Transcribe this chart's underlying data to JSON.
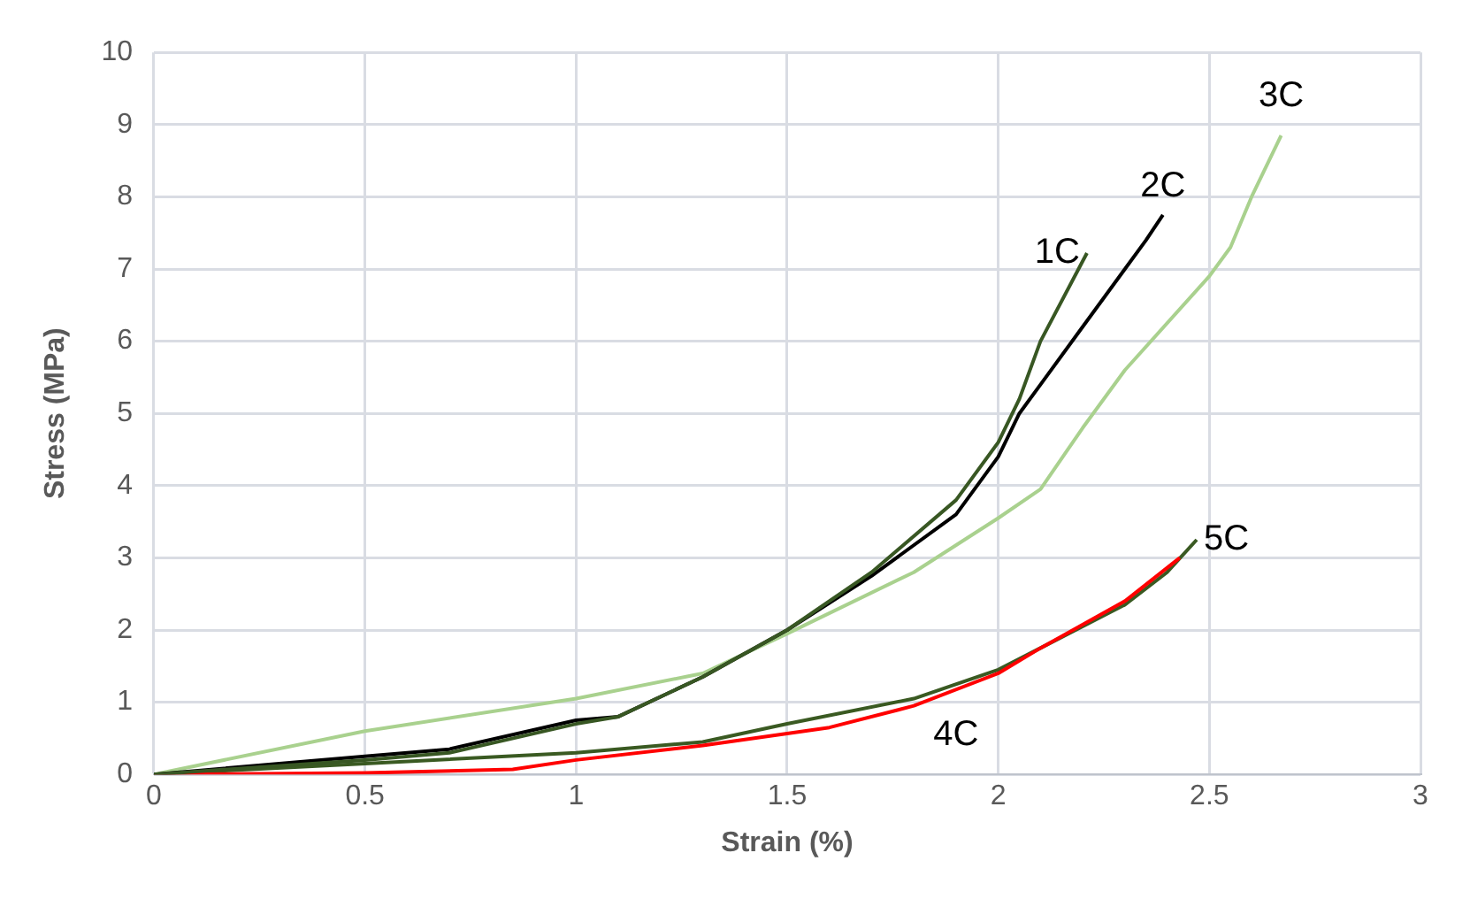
{
  "chart_data": {
    "type": "line",
    "xlabel": "Strain (%)",
    "ylabel": "Stress (MPa)",
    "xlim": [
      0,
      3
    ],
    "xticks": [
      0,
      0.5,
      1,
      1.5,
      2,
      2.5,
      3
    ],
    "ylim": [
      0,
      10
    ],
    "yticks": [
      0,
      1,
      2,
      3,
      4,
      5,
      6,
      7,
      8,
      9,
      10
    ],
    "grid": true,
    "legend": false,
    "marker": "none",
    "line_style": "solid",
    "series": [
      {
        "name": "1C",
        "color": "#385723",
        "x": [
          0,
          0.5,
          0.7,
          1,
          1.1,
          1.3,
          1.5,
          1.7,
          1.9,
          2,
          2.05,
          2.1,
          2.21
        ],
        "values": [
          0,
          0.2,
          0.3,
          0.7,
          0.8,
          1.35,
          2,
          2.8,
          3.8,
          4.6,
          5.2,
          6,
          7.22
        ]
      },
      {
        "name": "2C",
        "color": "#000000",
        "x": [
          0,
          0.5,
          0.7,
          1,
          1.1,
          1.3,
          1.5,
          1.7,
          1.9,
          2,
          2.05,
          2.1,
          2.2,
          2.3,
          2.35,
          2.39
        ],
        "values": [
          0,
          0.25,
          0.35,
          0.75,
          0.8,
          1.35,
          2,
          2.75,
          3.6,
          4.4,
          5,
          5.4,
          6.2,
          7,
          7.4,
          7.75
        ]
      },
      {
        "name": "3C",
        "color": "#a9d18e",
        "x": [
          0,
          0.5,
          1,
          1.3,
          1.5,
          1.8,
          2,
          2.1,
          2.2,
          2.3,
          2.5,
          2.55,
          2.6,
          2.67
        ],
        "values": [
          0,
          0.6,
          1.05,
          1.4,
          1.95,
          2.8,
          3.55,
          3.95,
          4.8,
          5.6,
          6.9,
          7.3,
          8,
          8.85
        ]
      },
      {
        "name": "4C",
        "color": "#ff0000",
        "x": [
          0,
          0.5,
          0.85,
          1,
          1.3,
          1.6,
          1.8,
          2,
          2.1,
          2.3,
          2.43
        ],
        "values": [
          0,
          0.02,
          0.07,
          0.2,
          0.4,
          0.65,
          0.95,
          1.4,
          1.75,
          2.4,
          3
        ]
      },
      {
        "name": "5C",
        "color": "#3a5a22",
        "x": [
          0,
          0.5,
          1,
          1.3,
          1.5,
          1.8,
          2,
          2.1,
          2.3,
          2.4,
          2.47
        ],
        "values": [
          0,
          0.15,
          0.3,
          0.45,
          0.7,
          1.05,
          1.45,
          1.75,
          2.35,
          2.8,
          3.25
        ]
      }
    ]
  }
}
